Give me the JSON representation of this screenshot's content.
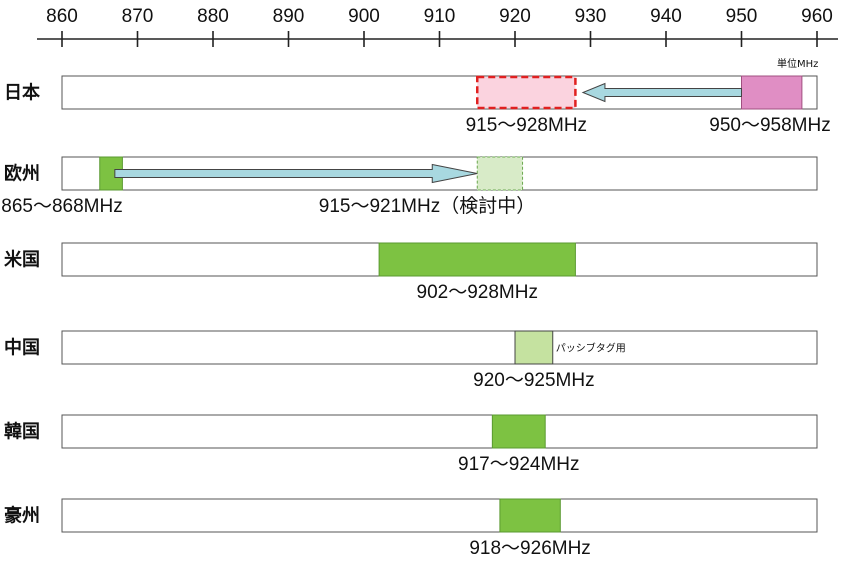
{
  "chart_data": {
    "type": "range-bands",
    "x_ticks": [
      "860",
      "870",
      "880",
      "890",
      "900",
      "910",
      "920",
      "930",
      "940",
      "950",
      "960"
    ],
    "x_range": [
      860,
      960
    ],
    "unit_label": "単位MHz",
    "rows": [
      {
        "region": "日本",
        "bands": [
          {
            "start": 915,
            "end": 928,
            "style": "planned-pink",
            "label": "915～928MHz"
          },
          {
            "start": 950,
            "end": 958,
            "style": "current-pink",
            "label": "950～958MHz"
          }
        ],
        "arrow": {
          "from": 950,
          "to": 929
        }
      },
      {
        "region": "欧州",
        "bands": [
          {
            "start": 865,
            "end": 868,
            "style": "current-green",
            "label": "865～868MHz"
          },
          {
            "start": 915,
            "end": 921,
            "style": "planned-green",
            "label": "915～921MHz（検討中）"
          }
        ],
        "arrow": {
          "from": 867,
          "to": 915
        }
      },
      {
        "region": "米国",
        "bands": [
          {
            "start": 902,
            "end": 928,
            "style": "current-green",
            "label": "902～928MHz"
          }
        ]
      },
      {
        "region": "中国",
        "bands": [
          {
            "start": 920,
            "end": 925,
            "style": "light-green",
            "label": "920～925MHz",
            "note": "パッシブタグ用"
          }
        ]
      },
      {
        "region": "韓国",
        "bands": [
          {
            "start": 917,
            "end": 924,
            "style": "current-green",
            "label": "917～924MHz"
          }
        ]
      },
      {
        "region": "豪州",
        "bands": [
          {
            "start": 918,
            "end": 926,
            "style": "current-green",
            "label": "918～926MHz"
          }
        ]
      }
    ],
    "colors": {
      "current-green": "#7DC242",
      "light-green": "#C5E2A0",
      "planned-green": "#D8EBC8",
      "current-pink": "#E08EC4",
      "planned-pink": "#FBD3DF",
      "planned-pink-border": "#E02020",
      "arrow-fill": "#A8D8E0"
    }
  }
}
